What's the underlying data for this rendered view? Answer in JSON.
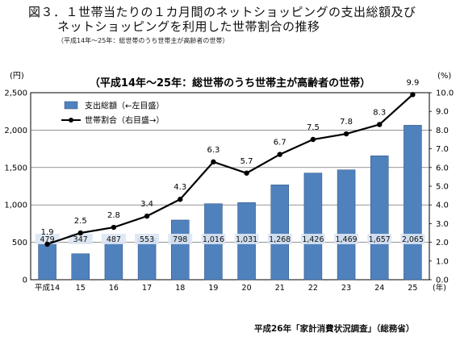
{
  "header": {
    "title_line1": "図３．１世帯当たりの１カ月間のネットショッピングの支出総額及び",
    "title_line2": "ネットショッピングを利用した世帯割合の推移",
    "note": "（平成14年〜25年：総世帯のうち世帯主が高齢者の世帯）"
  },
  "footer": {
    "source": "平成26年「家計消費状況調査」（総務省）"
  },
  "chart_data": {
    "type": "bar",
    "title": "（平成14年～25年：総世帯のうち世帯主が高齢者の世帯）",
    "categories": [
      "平成14",
      "15",
      "16",
      "17",
      "18",
      "19",
      "20",
      "21",
      "22",
      "23",
      "24",
      "25"
    ],
    "x_unit": "(年)",
    "y_left": {
      "unit": "(円)",
      "range": [
        0,
        2500
      ],
      "ticks": [
        "0",
        "500",
        "1,000",
        "1,500",
        "2,000",
        "2,500"
      ]
    },
    "y_right": {
      "unit": "(%)",
      "range": [
        0,
        10
      ],
      "ticks": [
        "0.0",
        "1.0",
        "2.0",
        "3.0",
        "4.0",
        "5.0",
        "6.0",
        "7.0",
        "8.0",
        "9.0",
        "10.0"
      ]
    },
    "grid": true,
    "legend_position": "top-left",
    "series": [
      {
        "name": "支出総額（←左目盛）",
        "kind": "bar",
        "axis": "left",
        "color": "#4f81bd",
        "values": [
          479,
          347,
          487,
          553,
          798,
          1016,
          1031,
          1268,
          1426,
          1469,
          1657,
          2065
        ],
        "labels": [
          "479",
          "347",
          "487",
          "553",
          "798",
          "1,016",
          "1,031",
          "1,268",
          "1,426",
          "1,469",
          "1,657",
          "2,065"
        ]
      },
      {
        "name": "世帯割合（右目盛→）",
        "kind": "line",
        "axis": "right",
        "color": "#000000",
        "values": [
          1.9,
          2.5,
          2.8,
          3.4,
          4.3,
          6.3,
          5.7,
          6.7,
          7.5,
          7.8,
          8.3,
          9.9
        ],
        "labels": [
          "1.9",
          "2.5",
          "2.8",
          "3.4",
          "4.3",
          "6.3",
          "5.7",
          "6.7",
          "7.5",
          "7.8",
          "8.3",
          "9.9"
        ]
      }
    ]
  }
}
